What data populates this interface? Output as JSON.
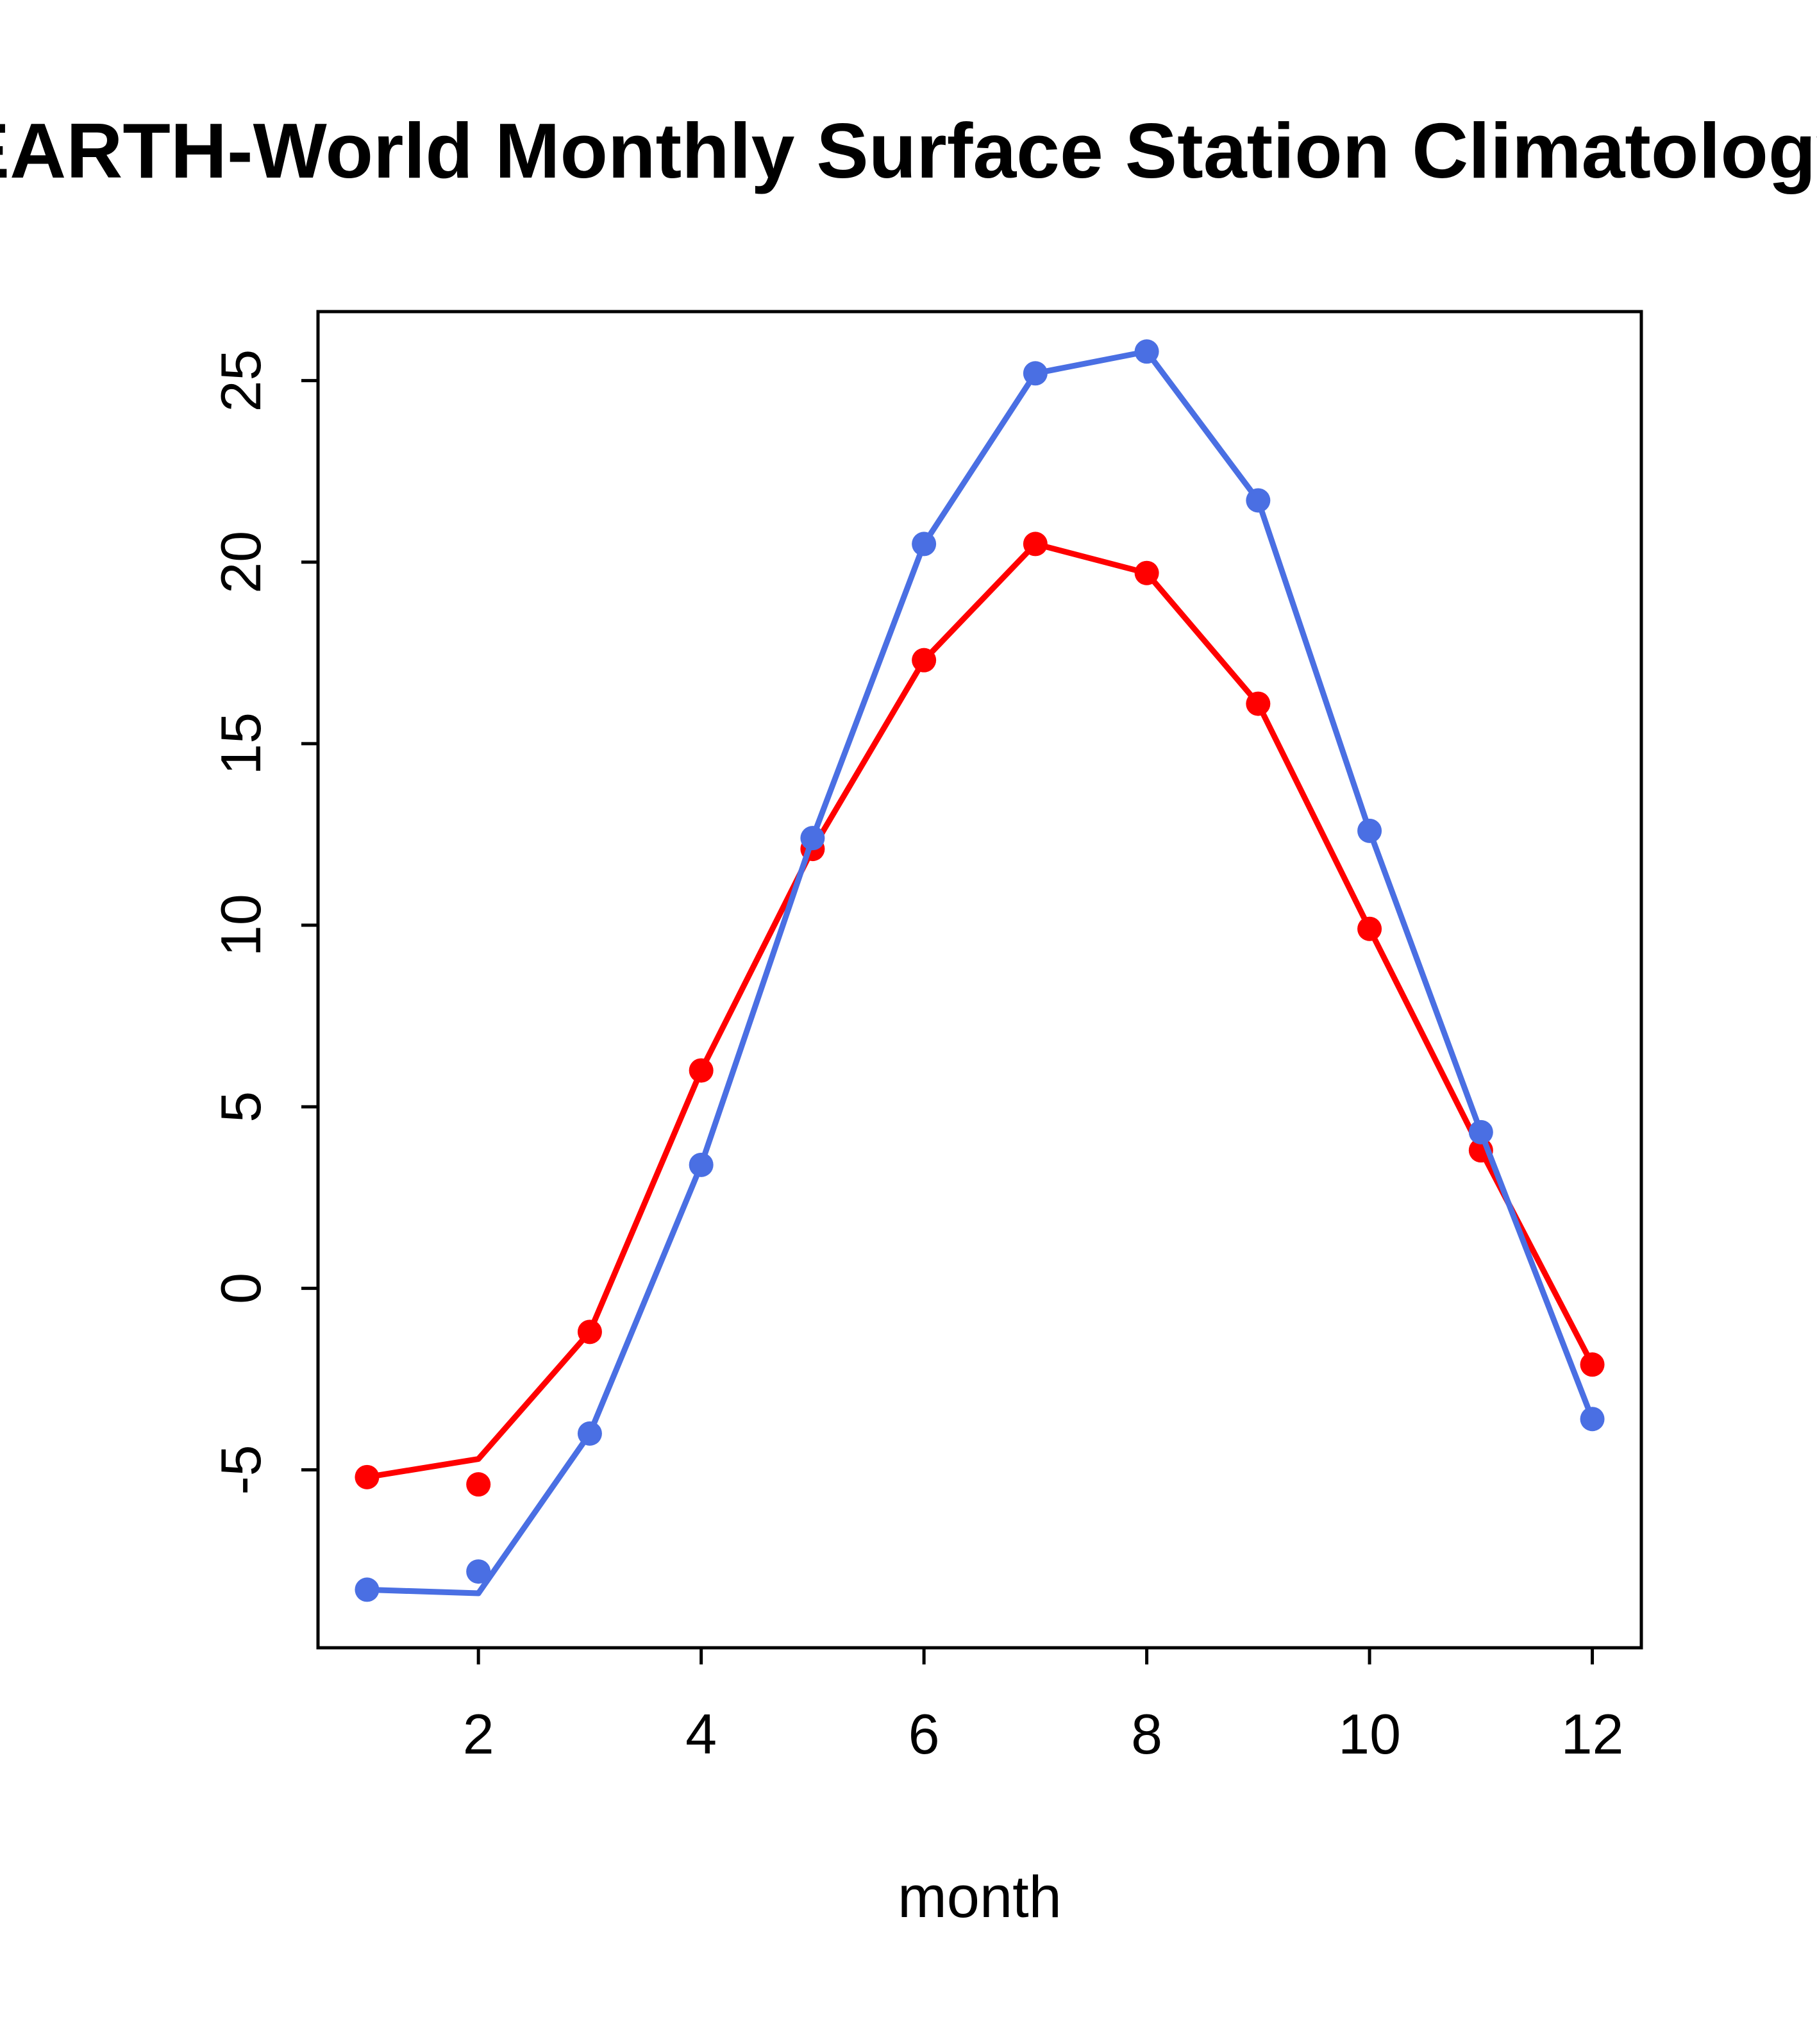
{
  "title": "EARTH-World Monthly Surface Station Climatology",
  "chart_data": {
    "type": "line",
    "title": "EARTH-World Monthly Surface Station Climatology",
    "xlabel": "month",
    "ylabel": "",
    "x": [
      1,
      2,
      3,
      4,
      5,
      6,
      7,
      8,
      9,
      10,
      11,
      12
    ],
    "xticks": [
      2,
      4,
      6,
      8,
      10,
      12
    ],
    "yticks": [
      -5,
      0,
      5,
      10,
      15,
      20,
      25
    ],
    "xlim": [
      0.56,
      12.44
    ],
    "ylim": [
      -9.9,
      26.9
    ],
    "grid": false,
    "legend": "none",
    "series": [
      {
        "name": "red-series",
        "color": "#FF0000",
        "line_values": [
          -5.2,
          -4.7,
          -1.2,
          6.0,
          12.1,
          17.3,
          20.5,
          19.7,
          16.1,
          9.9,
          3.8,
          -2.1
        ],
        "point_values": [
          -5.2,
          -5.4,
          -1.2,
          6.0,
          12.1,
          17.3,
          20.5,
          19.7,
          16.1,
          9.9,
          3.8,
          -2.1
        ]
      },
      {
        "name": "blue-series",
        "color": "#4A6FE3",
        "line_values": [
          -8.3,
          -8.4,
          -4.0,
          3.4,
          12.4,
          20.5,
          25.2,
          25.8,
          21.7,
          12.6,
          4.3,
          -3.6
        ],
        "point_values": [
          -8.3,
          -7.8,
          -4.0,
          3.4,
          12.4,
          20.5,
          25.2,
          25.8,
          21.7,
          12.6,
          4.3,
          -3.6
        ]
      }
    ],
    "style": {
      "axis_color": "#000000",
      "background": "#ffffff",
      "line_width": 9,
      "point_radius": 19
    }
  }
}
